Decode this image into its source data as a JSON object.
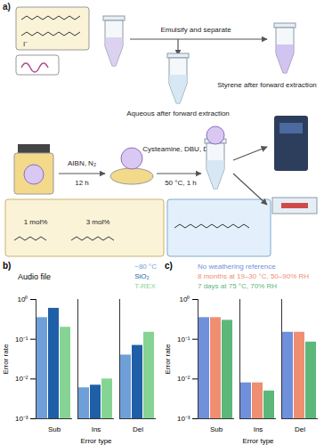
{
  "diagram": {
    "label": "a)",
    "labels": {
      "counterion": "I⁻",
      "emulsify": "Emulsify and separate",
      "styrene": "Styrene after forward extraction",
      "aqueous": "Aqueous after forward extraction",
      "monomer1": "1 mol%",
      "monomer2": "3 mol%",
      "step1": [
        "AIBN, N₂",
        "12 h"
      ],
      "step2": [
        "Cysteamine, DBU, DMF",
        "50 °C, 1 h"
      ]
    }
  },
  "chart_data": [
    {
      "type": "bar",
      "title": "Audio file",
      "annotations": [
        "b)"
      ],
      "xlabel": "Error type",
      "ylabel": "Error rate",
      "categories": [
        "Sub",
        "Ins",
        "Del"
      ],
      "series": [
        {
          "name": "−80 °C",
          "color": "#6f9fd8",
          "values": [
            0.35,
            0.006,
            0.04
          ]
        },
        {
          "name": "SiO₂",
          "color": "#1f5fa8",
          "values": [
            0.6,
            0.007,
            0.07
          ]
        },
        {
          "name": "T-REX",
          "color": "#86d494",
          "values": [
            0.2,
            0.01,
            0.15
          ]
        }
      ],
      "log": "y",
      "ylim": [
        0.001,
        1
      ],
      "yticks": [
        {
          "value": 0.001,
          "label": "10⁻³"
        },
        {
          "value": 0.01,
          "label": "10⁻²"
        },
        {
          "value": 0.1,
          "label": "10⁻¹"
        },
        {
          "value": 1,
          "label": "10⁰"
        }
      ],
      "legend": "upper right"
    },
    {
      "type": "bar",
      "annotations": [
        "c)"
      ],
      "xlabel": "Error type",
      "ylabel": "Error rate",
      "categories": [
        "Sub",
        "Ins",
        "Del"
      ],
      "series": [
        {
          "name": "No weathering reference",
          "color": "#7090dc",
          "values": [
            0.35,
            0.008,
            0.15
          ]
        },
        {
          "name": "8 months at 19–30 °C, 50–90% RH",
          "color": "#f08e72",
          "values": [
            0.35,
            0.008,
            0.15
          ]
        },
        {
          "name": "7 days at 75 °C, 70% RH",
          "color": "#5cb87a",
          "values": [
            0.3,
            0.005,
            0.085
          ]
        }
      ],
      "log": "y",
      "ylim": [
        0.001,
        1
      ],
      "yticks": [
        {
          "value": 0.001,
          "label": "10⁻³"
        },
        {
          "value": 0.01,
          "label": "10⁻²"
        },
        {
          "value": 0.1,
          "label": "10⁻¹"
        },
        {
          "value": 1,
          "label": "10⁰"
        }
      ],
      "legend": "upper left"
    }
  ]
}
